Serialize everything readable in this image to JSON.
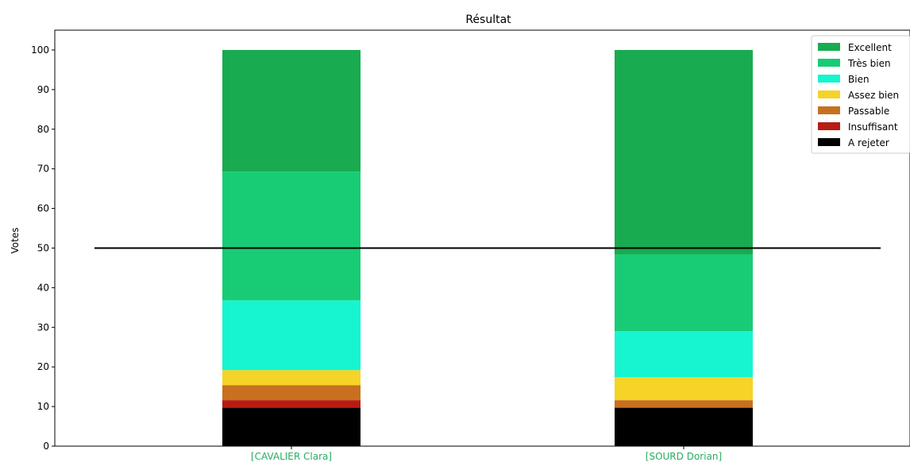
{
  "chart_data": {
    "type": "bar",
    "stacked": true,
    "title": "Résultat",
    "xlabel": "",
    "ylabel": "Votes",
    "ylim": [
      0,
      105
    ],
    "yticks": [
      0,
      10,
      20,
      30,
      40,
      50,
      60,
      70,
      80,
      90,
      100
    ],
    "categories": [
      "[CAVALIER Clara]",
      "[SOURD Dorian]"
    ],
    "category_label_color": "#27ae60",
    "reference_line": {
      "y": 50,
      "color": "#000000"
    },
    "legend_position": "top-right",
    "series": [
      {
        "name": "A rejeter",
        "color": "#000000",
        "values": [
          9.7,
          9.7
        ]
      },
      {
        "name": "Insuffisant",
        "color": "#b71c13",
        "values": [
          1.9,
          0.0
        ]
      },
      {
        "name": "Passable",
        "color": "#c87020",
        "values": [
          3.8,
          1.9
        ]
      },
      {
        "name": "Assez bien",
        "color": "#f5d327",
        "values": [
          3.8,
          5.8
        ]
      },
      {
        "name": "Bien",
        "color": "#17f5d0",
        "values": [
          17.6,
          11.6
        ]
      },
      {
        "name": "Très bien",
        "color": "#18cc75",
        "values": [
          32.5,
          19.4
        ]
      },
      {
        "name": "Excellent",
        "color": "#18ab4f",
        "values": [
          30.7,
          51.6
        ]
      }
    ],
    "legend_order": [
      "Excellent",
      "Très bien",
      "Bien",
      "Assez bien",
      "Passable",
      "Insuffisant",
      "A rejeter"
    ]
  }
}
